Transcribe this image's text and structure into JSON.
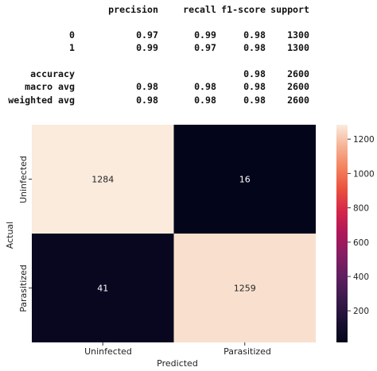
{
  "report": {
    "headers": [
      "precision",
      "recall",
      "f1-score",
      "support"
    ],
    "rows": [
      {
        "label": "0",
        "cells": [
          "0.97",
          "0.99",
          "0.98",
          "1300"
        ]
      },
      {
        "label": "1",
        "cells": [
          "0.99",
          "0.97",
          "0.98",
          "1300"
        ]
      },
      {
        "label": "accuracy",
        "cells": [
          "",
          "",
          "0.98",
          "2600"
        ]
      },
      {
        "label": "macro avg",
        "cells": [
          "0.98",
          "0.98",
          "0.98",
          "2600"
        ]
      },
      {
        "label": "weighted avg",
        "cells": [
          "0.98",
          "0.98",
          "0.98",
          "2600"
        ]
      }
    ]
  },
  "chart_data": {
    "type": "heatmap",
    "x_categories": [
      "Uninfected",
      "Parasitized"
    ],
    "y_categories": [
      "Uninfected",
      "Parasitized"
    ],
    "values": [
      [
        1284,
        16
      ],
      [
        41,
        1259
      ]
    ],
    "xlabel": "Predicted",
    "ylabel": "Actual",
    "colorbar_ticks": [
      200,
      400,
      600,
      800,
      1000,
      1200
    ],
    "color_range": [
      16,
      1284
    ],
    "colormap": "rocket",
    "annotation_colors": {
      "light_cell": "#262626",
      "dark_cell": "#ffffff"
    }
  }
}
